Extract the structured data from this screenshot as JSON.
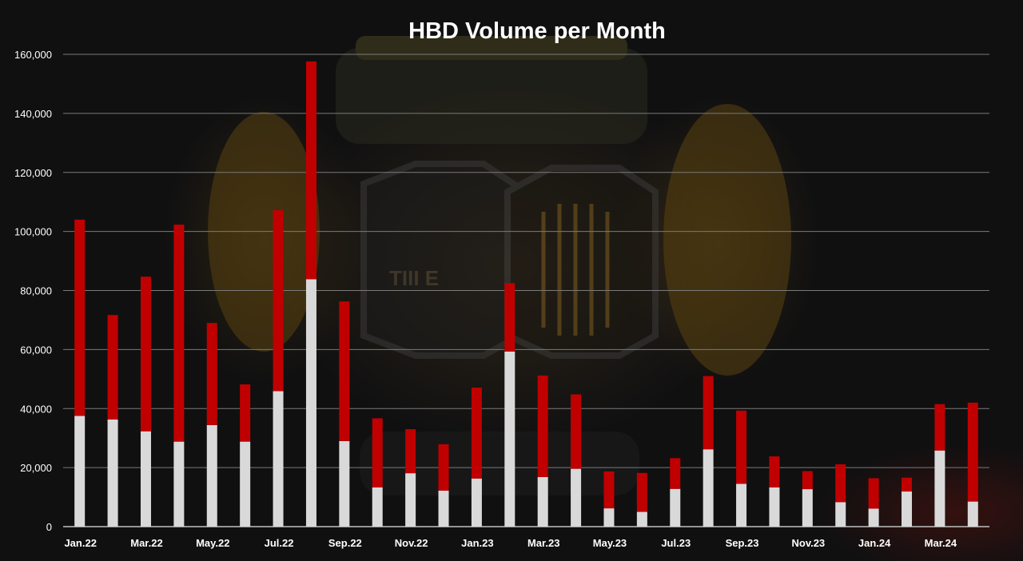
{
  "chart_data": {
    "type": "bar",
    "stacked": true,
    "title": "HBD Volume per Month",
    "xlabel": "",
    "ylabel": "",
    "ylim": [
      0,
      160000
    ],
    "yticks": [
      0,
      20000,
      40000,
      60000,
      80000,
      100000,
      120000,
      140000,
      160000
    ],
    "ytick_labels": [
      "0",
      "20,000",
      "40,000",
      "60,000",
      "80,000",
      "100,000",
      "120,000",
      "140,000",
      "160,000"
    ],
    "grid": "horizontal",
    "legend": "none",
    "categories": [
      "Jan.22",
      "Feb.22",
      "Mar.22",
      "Apr.22",
      "May.22",
      "Jun.22",
      "Jul.22",
      "Aug.22",
      "Sep.22",
      "Oct.22",
      "Nov.22",
      "Dec.22",
      "Jan.23",
      "Feb.23",
      "Mar.23",
      "Apr.23",
      "May.23",
      "Jun.23",
      "Jul.23",
      "Aug.23",
      "Sep.23",
      "Oct.23",
      "Nov.23",
      "Dec.23",
      "Jan.24",
      "Feb.24",
      "Mar.24",
      "Apr.24"
    ],
    "shown_x_labels": [
      "Jan.22",
      "Mar.22",
      "May.22",
      "Jul.22",
      "Sep.22",
      "Nov.22",
      "Jan.23",
      "Mar.23",
      "May.23",
      "Jul.23",
      "Sep.23",
      "Nov.23",
      "Jan.24",
      "Mar.24"
    ],
    "series": [
      {
        "color": "#d9d9d9",
        "values": [
          37500,
          36300,
          32300,
          28800,
          34400,
          28800,
          45900,
          83800,
          29000,
          13300,
          18100,
          12200,
          16300,
          59300,
          16800,
          19600,
          6200,
          5000,
          12800,
          26200,
          14500,
          13300,
          12700,
          8300,
          6100,
          11900,
          25800,
          8500
        ]
      },
      {
        "color": "#c00000",
        "values": [
          66500,
          35400,
          52400,
          73500,
          34600,
          19400,
          61300,
          73800,
          47300,
          23400,
          14900,
          15700,
          30800,
          23200,
          34400,
          25200,
          12500,
          13200,
          10400,
          24800,
          24800,
          10500,
          6100,
          12800,
          10300,
          4700,
          15700,
          33500
        ]
      }
    ]
  },
  "colors": {
    "background": "#101011",
    "grid": "#7a7a7a",
    "text": "#ffffff"
  },
  "watermark": {
    "text": "TIII E"
  }
}
